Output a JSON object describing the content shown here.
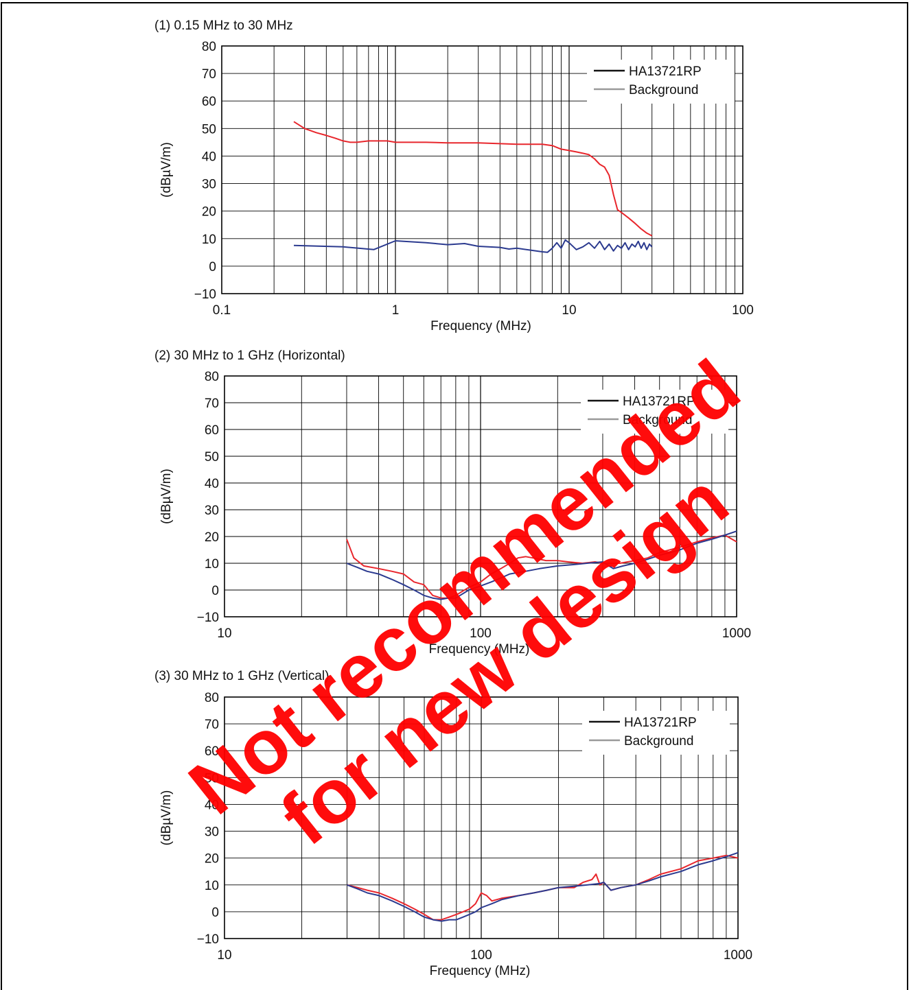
{
  "watermark": {
    "line1": "Not recommended",
    "line2": "for new design",
    "color": "#ff0000"
  },
  "colors": {
    "device": "#e8262c",
    "background": "#2b3a8f",
    "legend_device": "#111111",
    "legend_background": "#999999"
  },
  "chart_data": [
    {
      "type": "line",
      "title": "(1) 0.15 MHz to 30 MHz",
      "xlabel": "Frequency  (MHz)",
      "ylabel": "(dBµV/m)",
      "xscale": "log",
      "xlim": [
        0.1,
        100
      ],
      "ylim": [
        -10,
        80
      ],
      "xticks": [
        0.1,
        1,
        10,
        100
      ],
      "xtick_labels": [
        "0.1",
        "1",
        "10",
        "100"
      ],
      "yticks": [
        -10,
        0,
        10,
        20,
        30,
        40,
        50,
        60,
        70,
        80
      ],
      "ytick_labels": [
        "−10",
        "0",
        "10",
        "20",
        "30",
        "40",
        "50",
        "60",
        "70",
        "80"
      ],
      "grid": true,
      "legend": {
        "position": "top-right",
        "entries": [
          "HA13721RP",
          "Background"
        ]
      },
      "series": [
        {
          "name": "HA13721RP",
          "color": "#e8262c",
          "x": [
            0.26,
            0.3,
            0.35,
            0.4,
            0.45,
            0.5,
            0.55,
            0.6,
            0.7,
            0.8,
            0.9,
            1.0,
            1.5,
            2.0,
            3.0,
            4.0,
            5.0,
            6.0,
            7.0,
            8.0,
            9.0,
            10.0,
            11.0,
            12.0,
            13.0,
            14.0,
            15.0,
            16.0,
            17.0,
            18.0,
            19.0,
            20.0,
            22.0,
            24.0,
            26.0,
            28.0,
            30.0
          ],
          "y": [
            52.5,
            50.0,
            48.5,
            47.5,
            46.5,
            45.5,
            45.0,
            45.0,
            45.5,
            45.5,
            45.5,
            45.0,
            45.0,
            44.8,
            44.8,
            44.5,
            44.3,
            44.3,
            44.3,
            43.8,
            42.5,
            42.0,
            41.5,
            41.0,
            40.5,
            39.0,
            37.0,
            36.0,
            33.0,
            26.0,
            20.5,
            19.5,
            17.5,
            15.5,
            13.5,
            12.0,
            11.0
          ]
        },
        {
          "name": "Background",
          "color": "#2b3a8f",
          "x": [
            0.26,
            0.5,
            0.75,
            1.0,
            1.5,
            2.0,
            2.5,
            3.0,
            4.0,
            4.5,
            5.0,
            6.0,
            7.0,
            7.5,
            8.0,
            8.5,
            9.0,
            9.5,
            10.0,
            11.0,
            12.0,
            13.0,
            14.0,
            15.0,
            16.0,
            17.0,
            18.0,
            19.0,
            20.0,
            21.0,
            22.0,
            23.0,
            24.0,
            25.0,
            26.0,
            27.0,
            28.0,
            29.0,
            30.0
          ],
          "y": [
            7.5,
            7.0,
            6.0,
            9.2,
            8.5,
            7.8,
            8.2,
            7.2,
            6.8,
            6.2,
            6.5,
            5.8,
            5.2,
            5.0,
            6.5,
            8.5,
            6.5,
            9.5,
            8.5,
            6.0,
            7.0,
            8.5,
            6.5,
            9.0,
            6.0,
            8.0,
            5.5,
            7.5,
            6.5,
            8.5,
            6.0,
            8.0,
            7.0,
            9.0,
            6.5,
            8.5,
            6.0,
            8.0,
            7.0
          ]
        }
      ]
    },
    {
      "type": "line",
      "title": "(2) 30 MHz to 1 GHz (Horizontal)",
      "xlabel": "Frequency  (MHz)",
      "ylabel": "(dBµV/m)",
      "xscale": "log",
      "xlim": [
        10,
        1000
      ],
      "ylim": [
        -10,
        80
      ],
      "xticks": [
        10,
        100,
        1000
      ],
      "xtick_labels": [
        "10",
        "100",
        "1000"
      ],
      "yticks": [
        -10,
        0,
        10,
        20,
        30,
        40,
        50,
        60,
        70,
        80
      ],
      "ytick_labels": [
        "−10",
        "0",
        "10",
        "20",
        "30",
        "40",
        "50",
        "60",
        "70",
        "80"
      ],
      "grid": true,
      "legend": {
        "position": "top-right",
        "entries": [
          "HA13721RP",
          "Background"
        ]
      },
      "series": [
        {
          "name": "HA13721RP",
          "color": "#e8262c",
          "x": [
            30,
            32,
            35,
            40,
            45,
            50,
            55,
            60,
            65,
            70,
            75,
            80,
            90,
            100,
            110,
            120,
            130,
            140,
            150,
            160,
            170,
            180,
            200,
            220,
            250,
            280,
            300,
            350,
            400,
            450,
            500,
            600,
            700,
            800,
            900,
            1000
          ],
          "y": [
            19,
            12,
            9,
            8,
            7,
            6,
            3,
            2,
            -2,
            -3,
            -3,
            -2,
            1,
            3,
            6,
            8,
            10,
            12,
            12.5,
            12,
            11.5,
            11,
            11,
            10.5,
            10,
            10.5,
            10,
            10,
            11,
            12,
            14,
            16,
            18,
            19.5,
            20.5,
            18
          ]
        },
        {
          "name": "Background",
          "color": "#2b3a8f",
          "x": [
            30,
            33,
            36,
            40,
            45,
            50,
            55,
            60,
            65,
            70,
            75,
            80,
            90,
            100,
            110,
            120,
            130,
            150,
            170,
            200,
            230,
            260,
            300,
            330,
            360,
            400,
            450,
            500,
            550,
            600,
            700,
            800,
            900,
            1000
          ],
          "y": [
            10,
            8.5,
            7,
            6,
            4,
            2,
            0,
            -2,
            -3,
            -3.5,
            -3,
            -3,
            0,
            1.5,
            3,
            4.5,
            6,
            7,
            8,
            9,
            9.5,
            10,
            10.5,
            8,
            9,
            10,
            11.5,
            13,
            14,
            15,
            17.5,
            19,
            20.5,
            22
          ]
        }
      ]
    },
    {
      "type": "line",
      "title": "(3) 30 MHz to 1 GHz (Vertical)",
      "xlabel": "Frequency  (MHz)",
      "ylabel": "(dBµV/m)",
      "xscale": "log",
      "xlim": [
        10,
        1000
      ],
      "ylim": [
        -10,
        80
      ],
      "xticks": [
        10,
        100,
        1000
      ],
      "xtick_labels": [
        "10",
        "100",
        "1000"
      ],
      "yticks": [
        -10,
        0,
        10,
        20,
        30,
        40,
        50,
        60,
        70,
        80
      ],
      "ytick_labels": [
        "−10",
        "0",
        "10",
        "20",
        "30",
        "40",
        "50",
        "60",
        "70",
        "80"
      ],
      "grid": true,
      "legend": {
        "position": "top-right",
        "entries": [
          "HA13721RP",
          "Background"
        ]
      },
      "series": [
        {
          "name": "HA13721RP",
          "color": "#e8262c",
          "x": [
            30,
            33,
            36,
            40,
            45,
            50,
            55,
            60,
            65,
            70,
            75,
            80,
            85,
            90,
            95,
            100,
            105,
            110,
            120,
            140,
            160,
            180,
            200,
            230,
            250,
            270,
            280,
            290,
            300,
            320,
            350,
            400,
            450,
            500,
            600,
            700,
            800,
            900,
            1000
          ],
          "y": [
            10,
            9,
            8,
            7,
            5,
            3,
            1,
            -1,
            -3,
            -3,
            -2,
            -1,
            0,
            1,
            3,
            7,
            6,
            4,
            5,
            6,
            7,
            8,
            9,
            9,
            11,
            12,
            14,
            10,
            11,
            8,
            9,
            10,
            12,
            14,
            16,
            19,
            20,
            21,
            20
          ]
        },
        {
          "name": "Background",
          "color": "#2b3a8f",
          "x": [
            30,
            33,
            36,
            40,
            45,
            50,
            55,
            60,
            65,
            70,
            75,
            80,
            85,
            90,
            95,
            100,
            110,
            120,
            140,
            160,
            180,
            200,
            230,
            260,
            290,
            300,
            320,
            350,
            400,
            450,
            500,
            600,
            700,
            800,
            900,
            1000
          ],
          "y": [
            10,
            8.5,
            7,
            6,
            4,
            2,
            0,
            -2,
            -3,
            -3.5,
            -3,
            -3,
            -2,
            -1,
            0,
            1.5,
            3,
            4.5,
            6,
            7,
            8,
            9,
            9.5,
            10,
            10.5,
            11,
            8,
            9,
            10,
            11.5,
            13,
            15,
            17.5,
            19,
            20.5,
            22
          ]
        }
      ]
    }
  ]
}
